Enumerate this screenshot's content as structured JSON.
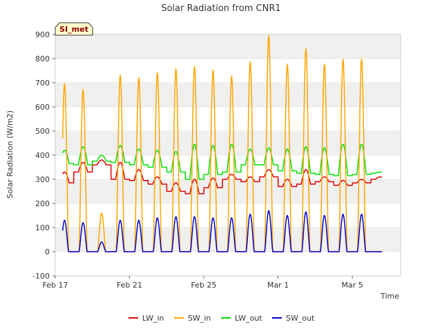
{
  "chart_data": {
    "type": "line",
    "title": "Solar Radiation from CNR1",
    "xlabel": "Time",
    "ylabel": "Solar Radiation (W/m2)",
    "badge": "SI_met",
    "ylim": [
      -100,
      900
    ],
    "yticks": [
      -100,
      0,
      100,
      200,
      300,
      400,
      500,
      600,
      700,
      800,
      900
    ],
    "xlim": [
      0,
      18.6
    ],
    "xticks": [
      {
        "value": 0,
        "label": "Feb 17"
      },
      {
        "value": 4,
        "label": "Feb 21"
      },
      {
        "value": 8,
        "label": "Feb 25"
      },
      {
        "value": 12,
        "label": "Mar 1"
      },
      {
        "value": 16,
        "label": "Mar 5"
      }
    ],
    "grid": "horizontal bands",
    "legend_position": "bottom",
    "days": [
      {
        "day": 0.5,
        "lw_in_day": 330,
        "lw_in_night": 285,
        "sw_in_peak": 695,
        "lw_out_day": 420,
        "lw_out_night": 365,
        "sw_out_peak": 130
      },
      {
        "day": 1.5,
        "lw_in_day": 370,
        "lw_in_night": 330,
        "sw_in_peak": 670,
        "lw_out_day": 435,
        "lw_out_night": 360,
        "sw_out_peak": 120
      },
      {
        "day": 2.5,
        "lw_in_day": 380,
        "lw_in_night": 360,
        "sw_in_peak": 160,
        "lw_out_day": 400,
        "lw_out_night": 375,
        "sw_out_peak": 40
      },
      {
        "day": 3.5,
        "lw_in_day": 370,
        "lw_in_night": 300,
        "sw_in_peak": 730,
        "lw_out_day": 440,
        "lw_out_night": 370,
        "sw_out_peak": 130
      },
      {
        "day": 4.5,
        "lw_in_day": 340,
        "lw_in_night": 295,
        "sw_in_peak": 720,
        "lw_out_day": 425,
        "lw_out_night": 360,
        "sw_out_peak": 130
      },
      {
        "day": 5.5,
        "lw_in_day": 310,
        "lw_in_night": 280,
        "sw_in_peak": 740,
        "lw_out_day": 420,
        "lw_out_night": 350,
        "sw_out_peak": 140
      },
      {
        "day": 6.5,
        "lw_in_day": 285,
        "lw_in_night": 250,
        "sw_in_peak": 755,
        "lw_out_day": 415,
        "lw_out_night": 330,
        "sw_out_peak": 145
      },
      {
        "day": 7.5,
        "lw_in_day": 300,
        "lw_in_night": 240,
        "sw_in_peak": 765,
        "lw_out_day": 445,
        "lw_out_night": 300,
        "sw_out_peak": 145
      },
      {
        "day": 8.5,
        "lw_in_day": 305,
        "lw_in_night": 265,
        "sw_in_peak": 750,
        "lw_out_day": 440,
        "lw_out_night": 320,
        "sw_out_peak": 140
      },
      {
        "day": 9.5,
        "lw_in_day": 320,
        "lw_in_night": 300,
        "sw_in_peak": 725,
        "lw_out_day": 445,
        "lw_out_night": 330,
        "sw_out_peak": 140
      },
      {
        "day": 10.5,
        "lw_in_day": 310,
        "lw_in_night": 290,
        "sw_in_peak": 785,
        "lw_out_day": 425,
        "lw_out_night": 360,
        "sw_out_peak": 155
      },
      {
        "day": 11.5,
        "lw_in_day": 340,
        "lw_in_night": 310,
        "sw_in_peak": 895,
        "lw_out_day": 430,
        "lw_out_night": 360,
        "sw_out_peak": 170
      },
      {
        "day": 12.5,
        "lw_in_day": 300,
        "lw_in_night": 270,
        "sw_in_peak": 775,
        "lw_out_day": 425,
        "lw_out_night": 335,
        "sw_out_peak": 150
      },
      {
        "day": 13.5,
        "lw_in_day": 340,
        "lw_in_night": 280,
        "sw_in_peak": 840,
        "lw_out_day": 435,
        "lw_out_night": 325,
        "sw_out_peak": 165
      },
      {
        "day": 14.5,
        "lw_in_day": 310,
        "lw_in_night": 290,
        "sw_in_peak": 775,
        "lw_out_day": 430,
        "lw_out_night": 320,
        "sw_out_peak": 150
      },
      {
        "day": 15.5,
        "lw_in_day": 295,
        "lw_in_night": 275,
        "sw_in_peak": 795,
        "lw_out_day": 445,
        "lw_out_night": 315,
        "sw_out_peak": 155
      },
      {
        "day": 16.5,
        "lw_in_day": 300,
        "lw_in_night": 285,
        "sw_in_peak": 795,
        "lw_out_day": 445,
        "lw_out_night": 320,
        "sw_out_peak": 155
      },
      {
        "day": 17.5,
        "lw_in_day": 310,
        "lw_in_night": 300,
        "sw_in_peak": 0,
        "lw_out_day": 330,
        "lw_out_night": 325,
        "sw_out_peak": 0
      }
    ],
    "series": [
      {
        "name": "LW_in",
        "color": "#e00000"
      },
      {
        "name": "SW_in",
        "color": "#ffa500"
      },
      {
        "name": "LW_out",
        "color": "#00e000"
      },
      {
        "name": "SW_out",
        "color": "#0000cc"
      }
    ]
  }
}
